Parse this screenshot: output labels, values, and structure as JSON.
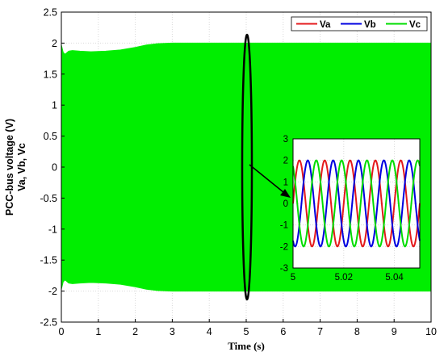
{
  "chart_data": {
    "type": "line",
    "main": {
      "xlabel": "Time (s)",
      "ylabel_lines": [
        "PCC-bus voltage (V)",
        "Va, Vb, Vc"
      ],
      "xlim": [
        0,
        10
      ],
      "ylim": [
        -2.5,
        2.5
      ],
      "xticks": [
        "0",
        "1",
        "2",
        "3",
        "4",
        "5",
        "6",
        "7",
        "8",
        "9",
        "10"
      ],
      "yticks": [
        "2.5",
        "2",
        "1.5",
        "1",
        "0.5",
        "0",
        "-0.5",
        "-1",
        "-1.5",
        "-2",
        "-2.5"
      ],
      "grid": true,
      "envelope": {
        "color": "#00ee00",
        "t": [
          0,
          0.05,
          0.1,
          0.2,
          0.3,
          0.5,
          0.8,
          1.2,
          1.6,
          2.0,
          2.3,
          2.6,
          3.0,
          10
        ],
        "upper": [
          1.97,
          1.85,
          1.82,
          1.87,
          1.88,
          1.87,
          1.86,
          1.87,
          1.89,
          1.93,
          1.97,
          1.99,
          2.0,
          2.0
        ],
        "lower": [
          -1.97,
          -1.85,
          -1.82,
          -1.87,
          -1.88,
          -1.87,
          -1.86,
          -1.87,
          -1.89,
          -1.93,
          -1.97,
          -1.99,
          -2.0,
          -2.0
        ]
      }
    },
    "inset": {
      "xlim": [
        5,
        5.05
      ],
      "ylim": [
        -3,
        3
      ],
      "xticks": [
        "5",
        "5.02",
        "5.04"
      ],
      "yticks": [
        "3",
        "2",
        "1",
        "0",
        "-1",
        "-2",
        "-3"
      ],
      "grid": true,
      "amplitude": 2,
      "frequency_hz": 100,
      "series": [
        {
          "name": "Va",
          "color": "#e41a1c",
          "phase_deg": 0
        },
        {
          "name": "Vb",
          "color": "#0000e0",
          "phase_deg": -120
        },
        {
          "name": "Vc",
          "color": "#00dd00",
          "phase_deg": 120
        }
      ]
    },
    "legend": {
      "placement": "top-right",
      "entries": [
        {
          "name": "Va",
          "color": "#e41a1c"
        },
        {
          "name": "Vb",
          "color": "#0000e0"
        },
        {
          "name": "Vc",
          "color": "#00dd00"
        }
      ]
    },
    "zoom_marker": {
      "center_t": 5.05
    }
  }
}
